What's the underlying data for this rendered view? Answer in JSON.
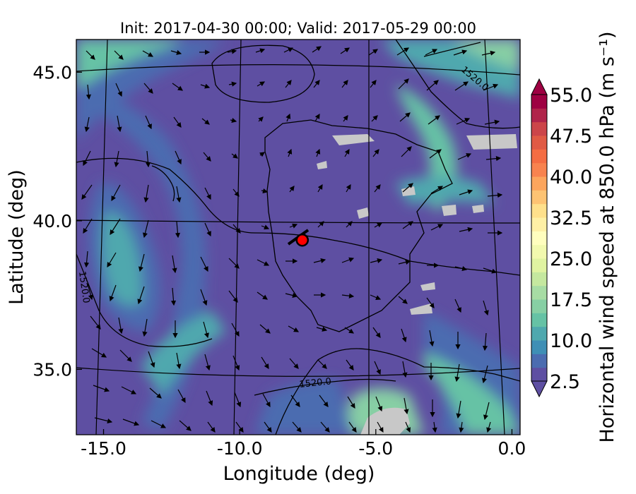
{
  "title": "Init: 2017-04-30 00:00; Valid: 2017-05-29 00:00",
  "x_axis": {
    "label": "Longitude (deg)",
    "ticks": [
      {
        "value": -15.0,
        "label": "-15.0"
      },
      {
        "value": -10.0,
        "label": "-10.0"
      },
      {
        "value": -5.0,
        "label": "-5.0"
      },
      {
        "value": 0.0,
        "label": "0.0"
      }
    ],
    "range": [
      -16.0,
      0.3
    ]
  },
  "y_axis": {
    "label": "Latitude (deg)",
    "ticks": [
      {
        "value": 45.0,
        "label": "45.0"
      },
      {
        "value": 40.0,
        "label": "40.0"
      },
      {
        "value": 35.0,
        "label": "35.0"
      }
    ],
    "range": [
      32.8,
      46.1
    ]
  },
  "colorbar": {
    "label": "Horizontal wind speed at 850.0 hPa (m s⁻¹)",
    "min": 2.5,
    "max": 55.0,
    "step": 2.5,
    "extend": "both",
    "tick_labels": [
      "2.5",
      "10.0",
      "17.5",
      "25.0",
      "32.5",
      "40.0",
      "47.5",
      "55.0"
    ],
    "colors": [
      "#5e4fa2",
      "#4b6cb0",
      "#3f8fb5",
      "#4fa8ae",
      "#66c2a5",
      "#87cfa4",
      "#a7dca4",
      "#c5e89f",
      "#e0f3a1",
      "#f2f9ae",
      "#fffebe",
      "#fef0a5",
      "#fee08b",
      "#fdc373",
      "#fca55d",
      "#f8834f",
      "#f46d43",
      "#e05a44",
      "#cc4549",
      "#b0244a",
      "#9e0142"
    ]
  },
  "contour_labels": [
    "1520.0",
    "1520.0",
    "1520.0"
  ],
  "marker": {
    "lon": -7.7,
    "lat": 39.35,
    "color": "#ff0000"
  },
  "palette": {
    "land_outline": "#000000",
    "terrain_mask": "#c8c8c8",
    "field_low": "#5e4fa2"
  }
}
